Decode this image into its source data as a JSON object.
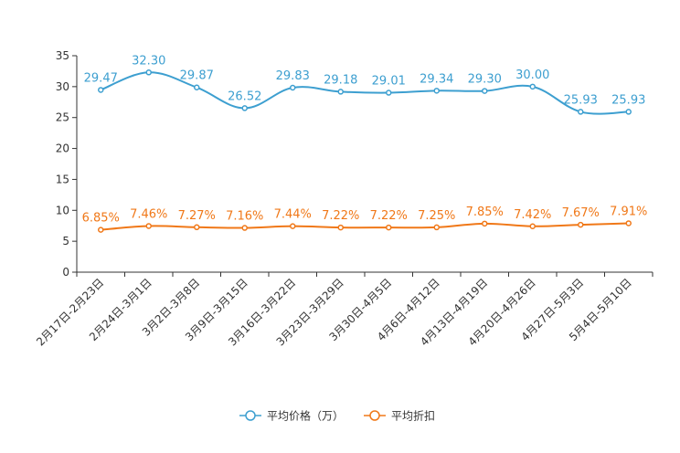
{
  "chart_data": {
    "type": "line",
    "categories": [
      "2月17日-2月23日",
      "2月24日-3月1日",
      "3月2日-3月8日",
      "3月9日-3月15日",
      "3月16日-3月22日",
      "3月23日-3月29日",
      "3月30日-4月5日",
      "4月6日-4月12日",
      "4月13日-4月19日",
      "4月20日-4月26日",
      "4月27日-5月3日",
      "5月4日-5月10日"
    ],
    "ylim": [
      0,
      35
    ],
    "yticks": [
      0,
      5,
      10,
      15,
      20,
      25,
      30,
      35
    ],
    "grid": false,
    "legend_position": "bottom",
    "series": [
      {
        "name": "平均价格（万）",
        "color": "#3d9fd0",
        "values": [
          29.47,
          32.3,
          29.87,
          26.52,
          29.83,
          29.18,
          29.01,
          29.34,
          29.3,
          30.0,
          25.93,
          25.93
        ],
        "labels": [
          "29.47",
          "32.30",
          "29.87",
          "26.52",
          "29.83",
          "29.18",
          "29.01",
          "29.34",
          "29.30",
          "30.00",
          "25.93",
          "25.93"
        ]
      },
      {
        "name": "平均折扣",
        "color": "#f07818",
        "values": [
          6.85,
          7.46,
          7.27,
          7.16,
          7.44,
          7.22,
          7.22,
          7.25,
          7.85,
          7.42,
          7.67,
          7.91
        ],
        "labels": [
          "6.85%",
          "7.46%",
          "7.27%",
          "7.16%",
          "7.44%",
          "7.22%",
          "7.22%",
          "7.25%",
          "7.85%",
          "7.42%",
          "7.67%",
          "7.91%"
        ]
      }
    ]
  }
}
